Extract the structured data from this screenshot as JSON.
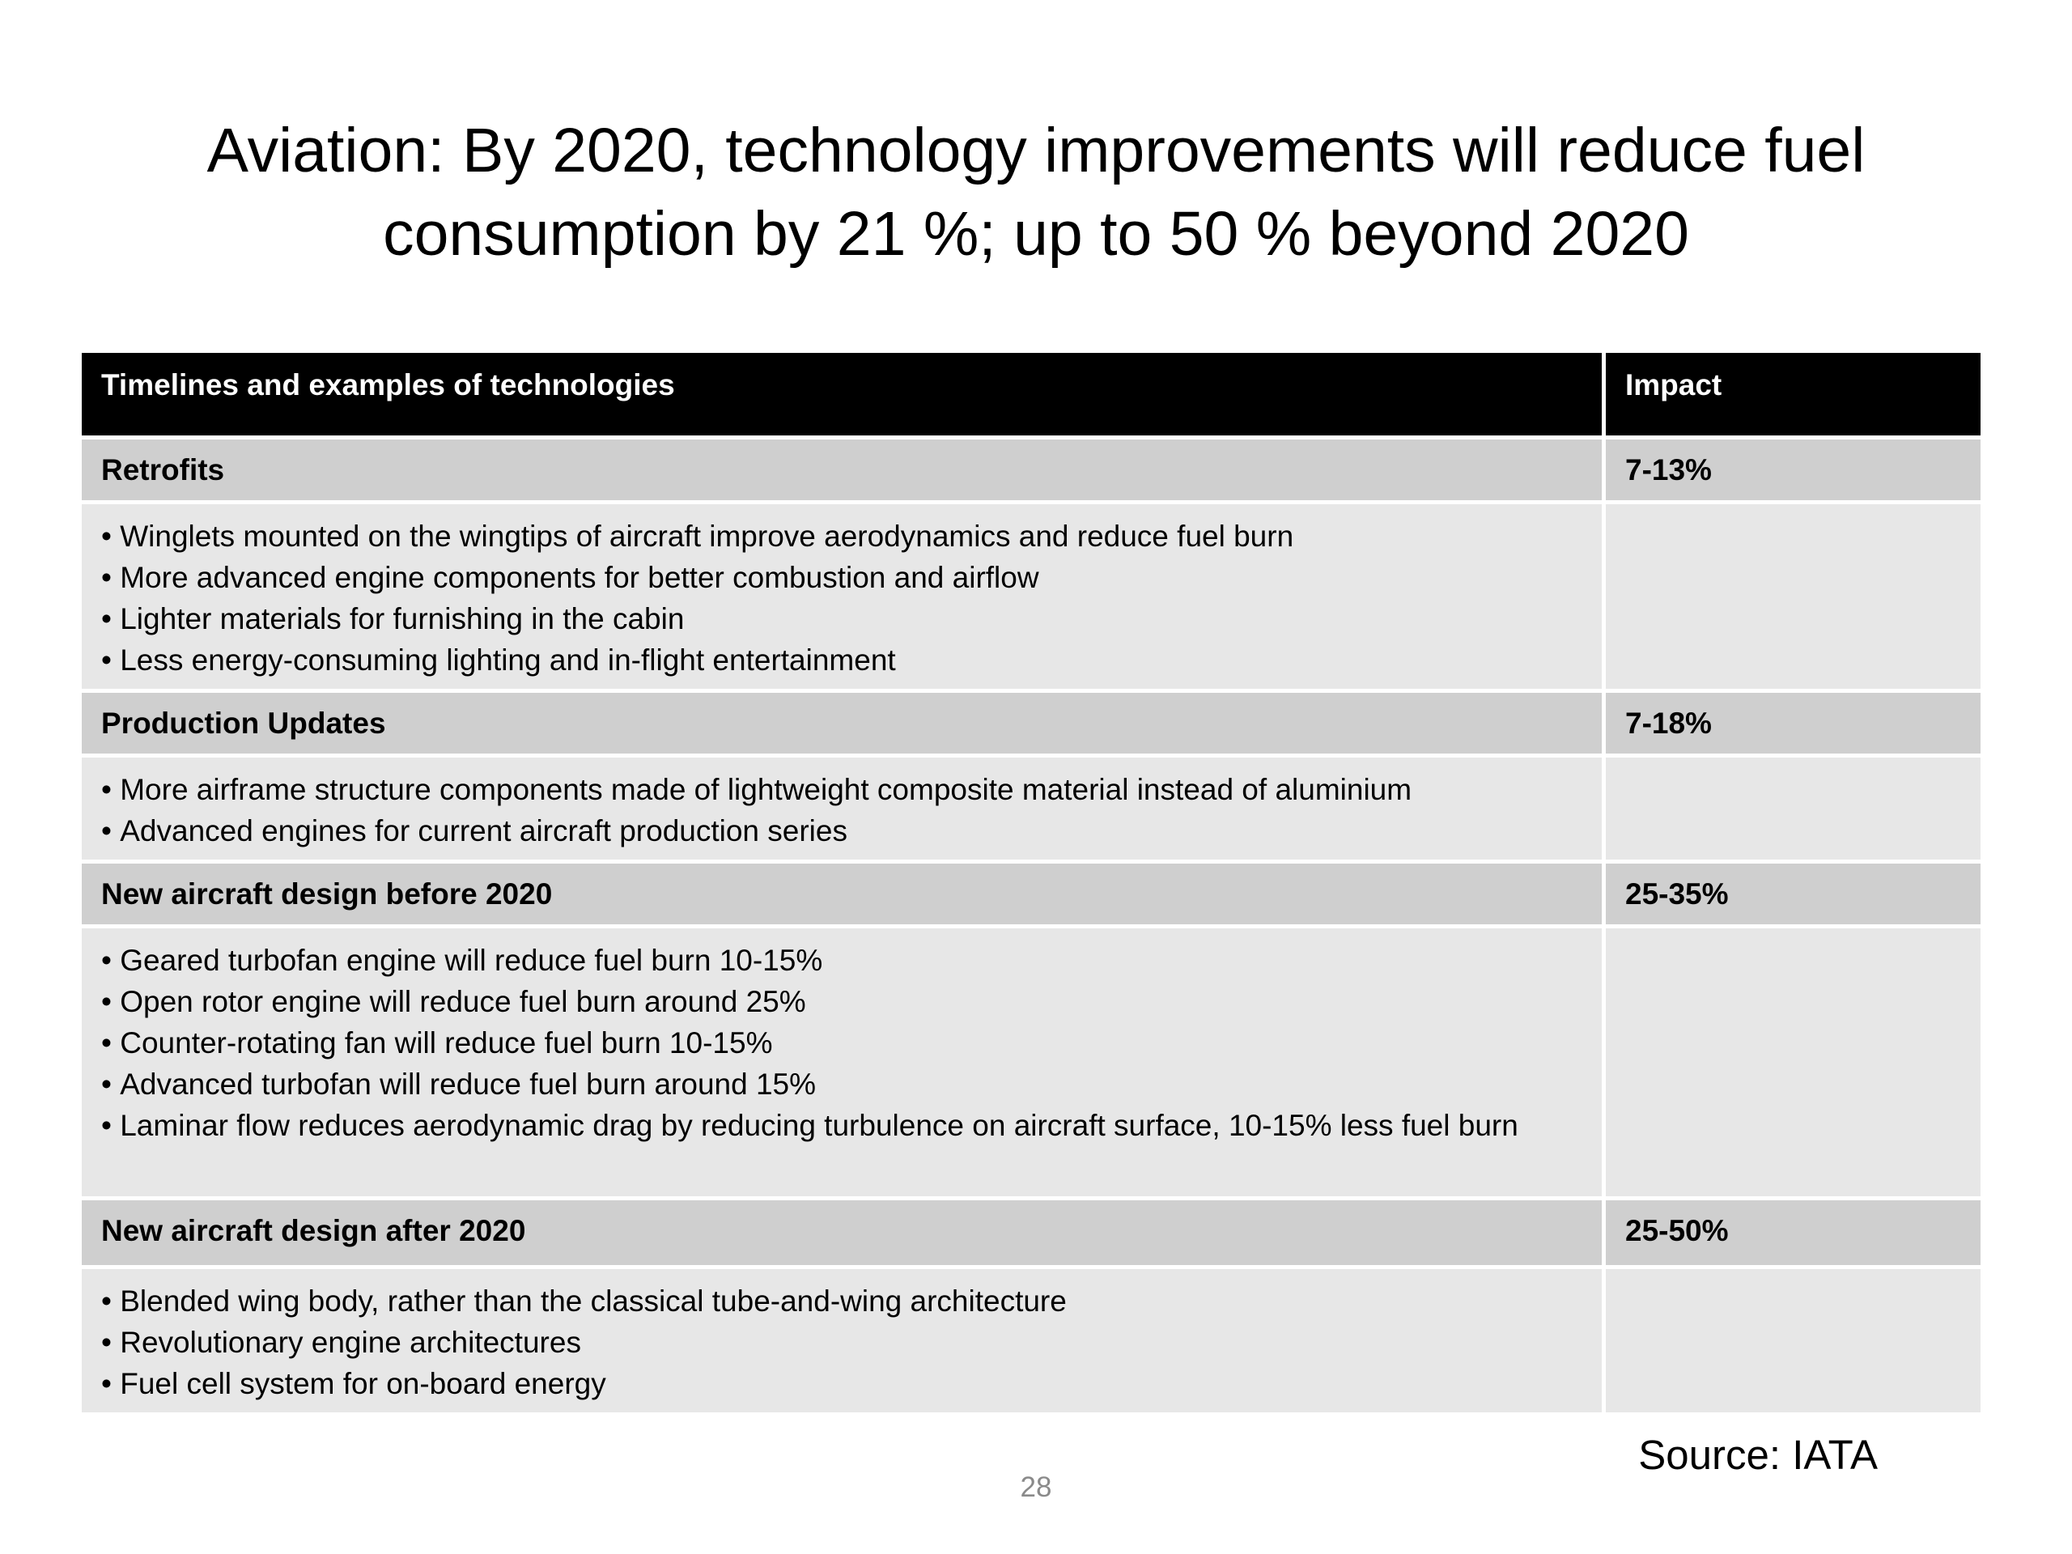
{
  "title": {
    "line1": "Aviation: By 2020, technology improvements will reduce fuel",
    "line2": "consumption by 21 %; up to 50 % beyond 2020"
  },
  "table": {
    "headers": [
      "Timelines and examples of technologies",
      "Impact"
    ],
    "sections": [
      {
        "category": "Retrofits",
        "impact": "7-13%",
        "items": [
          "Winglets mounted on the wingtips of aircraft improve aerodynamics and reduce fuel burn",
          "More advanced engine components for better combustion and airflow",
          "Lighter materials for furnishing in the cabin",
          "Less energy-consuming lighting and in-flight entertainment"
        ]
      },
      {
        "category": "Production Updates",
        "impact": "7-18%",
        "items": [
          "More airframe structure components made of lightweight composite material instead of aluminium",
          "Advanced engines for current aircraft production series"
        ]
      },
      {
        "category": "New aircraft design before 2020",
        "impact": "25-35%",
        "items": [
          "Geared turbofan engine will reduce fuel burn 10-15%",
          "Open rotor engine will reduce fuel burn around 25%",
          "Counter-rotating fan will reduce fuel burn 10-15%",
          "Advanced turbofan will reduce fuel burn around 15%",
          "Laminar flow reduces aerodynamic drag by reducing turbulence on aircraft surface, 10-15% less fuel burn"
        ]
      },
      {
        "category": "New aircraft design after 2020",
        "impact": "25-50%",
        "items": [
          "Blended wing body, rather than the classical tube-and-wing architecture",
          "Revolutionary engine architectures",
          "Fuel cell system for on-board energy"
        ]
      }
    ]
  },
  "source": "Source: IATA",
  "page_number": "28"
}
